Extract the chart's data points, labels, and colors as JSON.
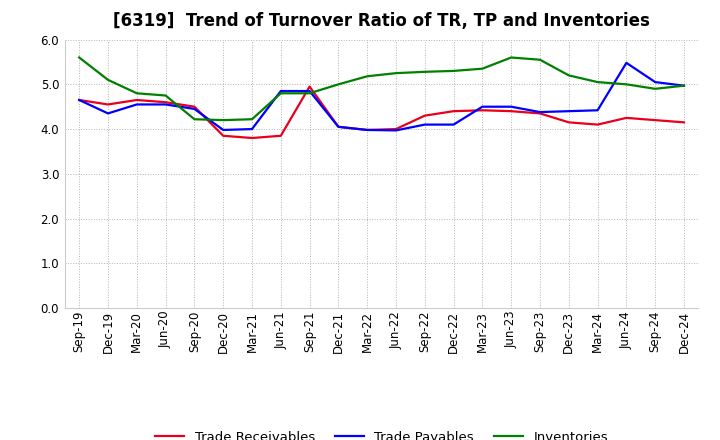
{
  "title": "[6319]  Trend of Turnover Ratio of TR, TP and Inventories",
  "labels": [
    "Sep-19",
    "Dec-19",
    "Mar-20",
    "Jun-20",
    "Sep-20",
    "Dec-20",
    "Mar-21",
    "Jun-21",
    "Sep-21",
    "Dec-21",
    "Mar-22",
    "Jun-22",
    "Sep-22",
    "Dec-22",
    "Mar-23",
    "Jun-23",
    "Sep-23",
    "Dec-23",
    "Mar-24",
    "Jun-24",
    "Sep-24",
    "Dec-24"
  ],
  "trade_receivables": [
    4.65,
    4.55,
    4.65,
    4.6,
    4.5,
    3.85,
    3.8,
    3.85,
    4.95,
    4.05,
    3.98,
    4.0,
    4.3,
    4.4,
    4.42,
    4.4,
    4.35,
    4.15,
    4.1,
    4.25,
    4.2,
    4.15
  ],
  "trade_payables": [
    4.65,
    4.35,
    4.55,
    4.55,
    4.45,
    3.98,
    4.0,
    4.85,
    4.85,
    4.05,
    3.98,
    3.97,
    4.1,
    4.1,
    4.5,
    4.5,
    4.38,
    4.4,
    4.42,
    5.48,
    5.05,
    4.97
  ],
  "inventories": [
    5.6,
    5.1,
    4.8,
    4.75,
    4.22,
    4.2,
    4.22,
    4.8,
    4.8,
    5.0,
    5.18,
    5.25,
    5.28,
    5.3,
    5.35,
    5.6,
    5.55,
    5.2,
    5.05,
    5.0,
    4.9,
    4.97
  ],
  "ylim": [
    0.0,
    6.0
  ],
  "yticks": [
    0.0,
    1.0,
    2.0,
    3.0,
    4.0,
    5.0,
    6.0
  ],
  "color_tr": "#e8001c",
  "color_tp": "#0000ff",
  "color_inv": "#008000",
  "legend_labels": [
    "Trade Receivables",
    "Trade Payables",
    "Inventories"
  ],
  "background_color": "#ffffff",
  "grid_color": "#aaaaaa",
  "title_fontsize": 12,
  "tick_fontsize": 8.5,
  "legend_fontsize": 9.5
}
